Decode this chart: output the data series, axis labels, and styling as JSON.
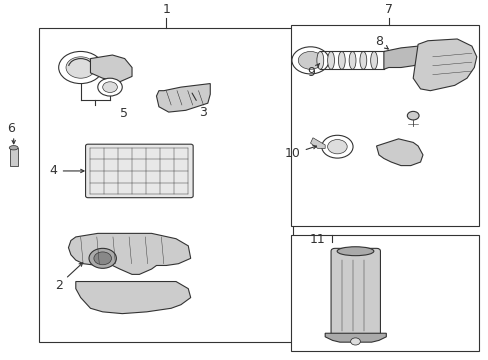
{
  "bg_color": "#ffffff",
  "line_color": "#333333",
  "fig_width": 4.89,
  "fig_height": 3.6,
  "dpi": 100
}
